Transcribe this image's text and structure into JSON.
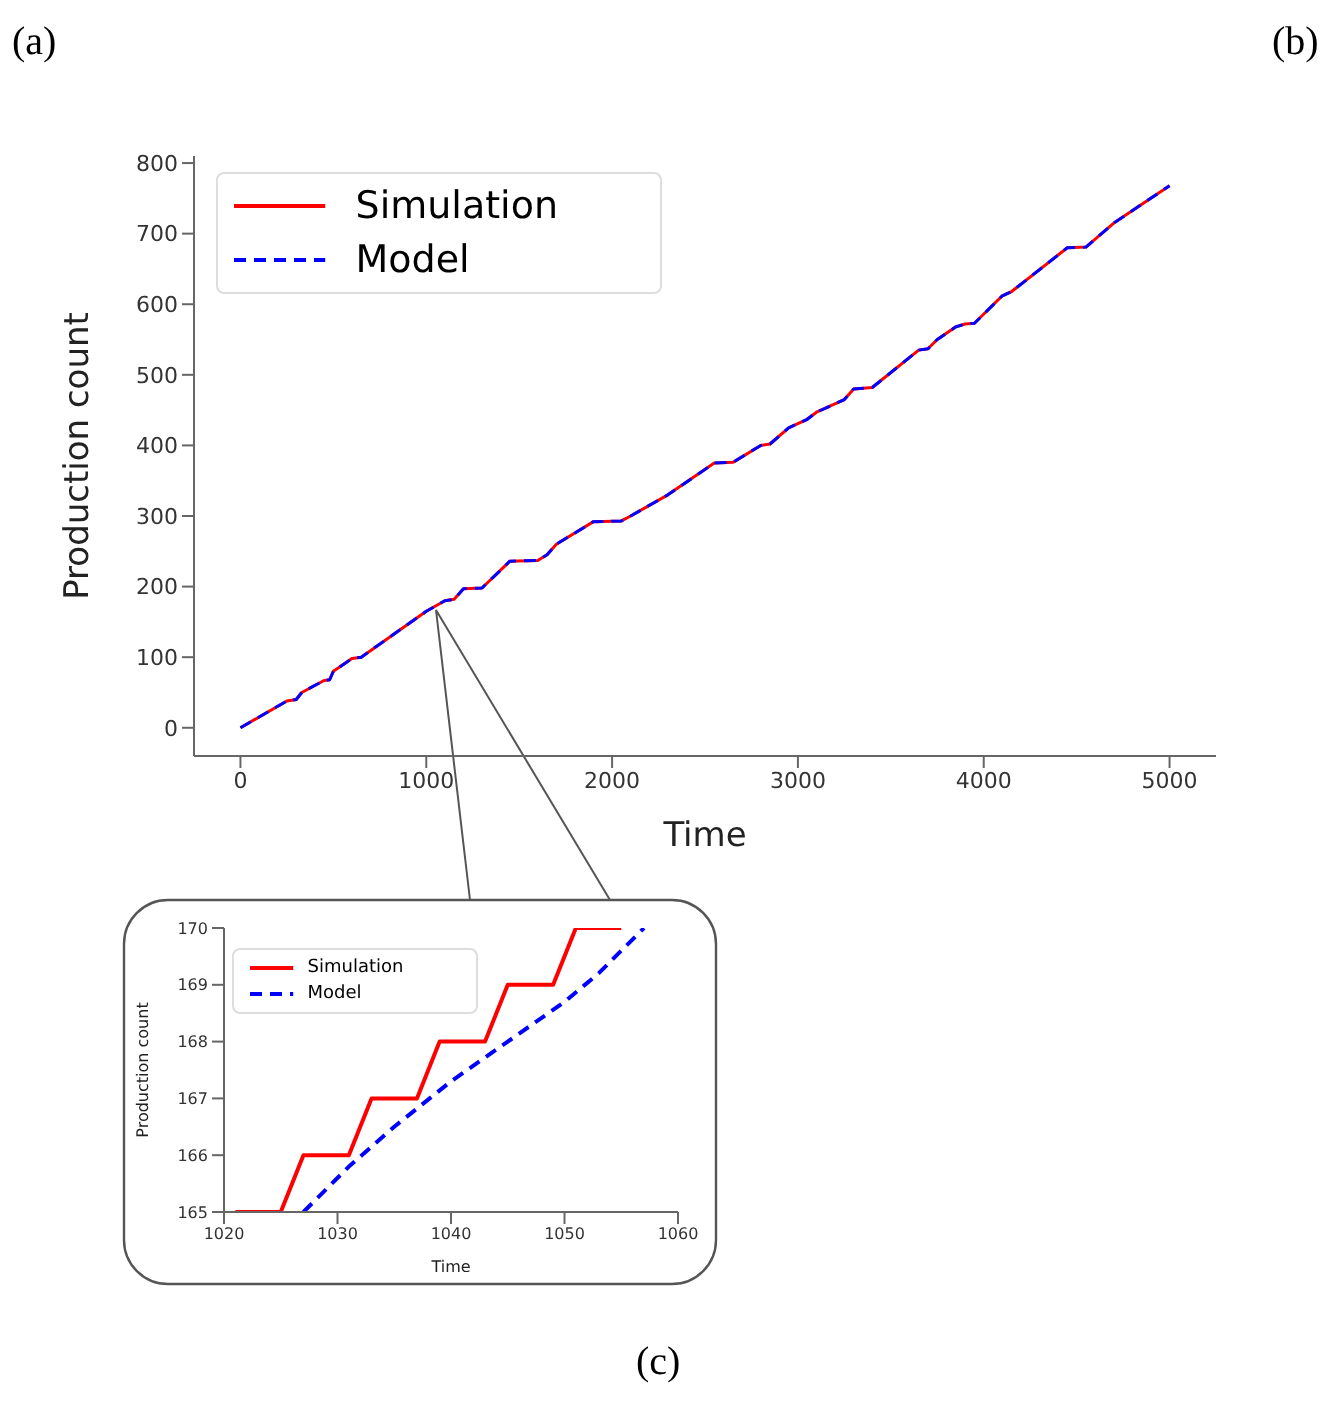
{
  "chart_data": [
    {
      "type": "line",
      "xlabel": "Time",
      "ylabel": "Production count",
      "annotations": [
        "(a)",
        "(b)"
      ],
      "x": [
        0,
        250,
        300,
        330,
        450,
        480,
        500,
        600,
        650,
        1000,
        1100,
        1150,
        1200,
        1300,
        1450,
        1600,
        1650,
        1700,
        1900,
        2050,
        2100,
        2300,
        2550,
        2650,
        2800,
        2850,
        2950,
        3050,
        3100,
        3250,
        3300,
        3400,
        3650,
        3700,
        3750,
        3850,
        3900,
        3950,
        4100,
        4150,
        4450,
        4550,
        4700,
        5000
      ],
      "series": [
        {
          "name": "Simulation",
          "color": "#ff0000",
          "line_style": "solid",
          "values": [
            0,
            38,
            40,
            50,
            67,
            68,
            80,
            98,
            100,
            165,
            180,
            182,
            197,
            198,
            236,
            237,
            245,
            260,
            292,
            293,
            300,
            330,
            375,
            376,
            400,
            402,
            425,
            437,
            447,
            465,
            480,
            482,
            535,
            537,
            550,
            568,
            572,
            573,
            612,
            618,
            680,
            681,
            715,
            768
          ]
        },
        {
          "name": "Model",
          "color": "#0000ff",
          "line_style": "dashed",
          "values": [
            0,
            38,
            40,
            50,
            67,
            68,
            80,
            98,
            100,
            165,
            180,
            182,
            197,
            198,
            236,
            237,
            245,
            260,
            292,
            293,
            300,
            330,
            375,
            376,
            400,
            402,
            425,
            437,
            447,
            465,
            480,
            482,
            535,
            537,
            550,
            568,
            572,
            573,
            612,
            618,
            680,
            681,
            715,
            768
          ]
        }
      ],
      "xlim": [
        -250,
        5250
      ],
      "xticks": [
        0,
        1000,
        2000,
        3000,
        4000,
        5000
      ],
      "ylim": [
        -40,
        810
      ],
      "yticks": [
        0,
        100,
        200,
        300,
        400,
        500,
        600,
        700,
        800
      ],
      "grid": false,
      "legend": "top left",
      "marker": "none"
    },
    {
      "type": "line",
      "xlabel": "Time",
      "ylabel": "Production count",
      "annotations": [
        "(c)"
      ],
      "series": [
        {
          "name": "Simulation",
          "color": "#ff0000",
          "line_style": "solid",
          "x": [
            1021,
            1025,
            1027,
            1031,
            1033,
            1037,
            1039,
            1043,
            1045,
            1049,
            1051,
            1055
          ],
          "values": [
            165,
            165,
            166,
            166,
            167,
            167,
            168,
            168,
            169,
            169,
            170,
            170
          ]
        },
        {
          "name": "Model",
          "color": "#0000ff",
          "line_style": "dashed",
          "x": [
            1027,
            1031,
            1035,
            1040,
            1045,
            1050,
            1053,
            1057
          ],
          "values": [
            165,
            165.8,
            166.5,
            167.3,
            168,
            168.7,
            169.2,
            170
          ]
        }
      ],
      "xlim": [
        1020,
        1060
      ],
      "xticks": [
        1020,
        1030,
        1040,
        1050,
        1060
      ],
      "ylim": [
        165,
        170
      ],
      "yticks": [
        165,
        166,
        167,
        168,
        169,
        170
      ],
      "grid": false,
      "legend": "top left",
      "marker": "none"
    }
  ]
}
